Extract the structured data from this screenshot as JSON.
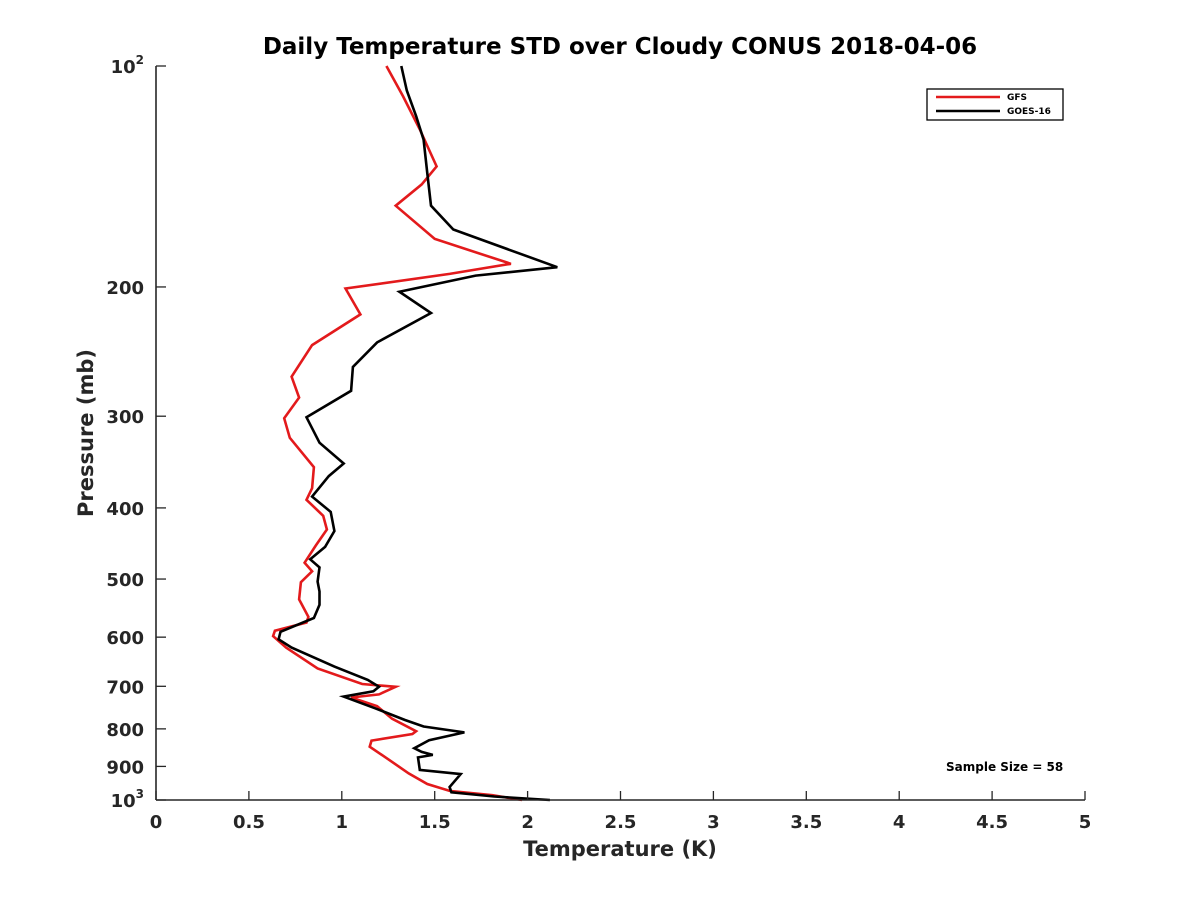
{
  "chart_data": {
    "type": "line",
    "title": "Daily Temperature STD over Cloudy CONUS 2018-04-06",
    "xlabel": "Temperature (K)",
    "ylabel": "Pressure (mb)",
    "xlim": [
      0,
      5
    ],
    "ylim": [
      100,
      1000
    ],
    "y_scale": "log",
    "y_reversed": true,
    "grid": false,
    "legend_position": "top-right",
    "x_ticks": [
      "0",
      "0.5",
      "1",
      "1.5",
      "2",
      "2.5",
      "3",
      "3.5",
      "4",
      "4.5",
      "5"
    ],
    "x_tick_values": [
      0,
      0.5,
      1,
      1.5,
      2,
      2.5,
      3,
      3.5,
      4,
      4.5,
      5
    ],
    "y_ticks": [
      {
        "value": 100,
        "base": "10",
        "exp": "2"
      },
      {
        "value": 200,
        "label": "200"
      },
      {
        "value": 300,
        "label": "300"
      },
      {
        "value": 400,
        "label": "400"
      },
      {
        "value": 500,
        "label": "500"
      },
      {
        "value": 600,
        "label": "600"
      },
      {
        "value": 700,
        "label": "700"
      },
      {
        "value": 800,
        "label": "800"
      },
      {
        "value": 900,
        "label": "900"
      },
      {
        "value": 1000,
        "base": "10",
        "exp": "3"
      }
    ],
    "annotation": "Sample Size = 58",
    "series": [
      {
        "name": "GFS",
        "color": "#e31a1c",
        "points": [
          [
            1.24,
            100
          ],
          [
            1.33,
            110
          ],
          [
            1.42,
            122
          ],
          [
            1.51,
            137
          ],
          [
            1.43,
            145
          ],
          [
            1.29,
            155
          ],
          [
            1.5,
            172
          ],
          [
            1.91,
            186
          ],
          [
            1.58,
            192
          ],
          [
            1.02,
            201
          ],
          [
            1.1,
            218
          ],
          [
            0.84,
            240
          ],
          [
            0.73,
            265
          ],
          [
            0.77,
            283
          ],
          [
            0.69,
            302
          ],
          [
            0.72,
            321
          ],
          [
            0.85,
            352
          ],
          [
            0.84,
            376
          ],
          [
            0.81,
            390
          ],
          [
            0.9,
            410
          ],
          [
            0.92,
            428
          ],
          [
            0.86,
            450
          ],
          [
            0.8,
            475
          ],
          [
            0.84,
            488
          ],
          [
            0.78,
            505
          ],
          [
            0.77,
            533
          ],
          [
            0.82,
            563
          ],
          [
            0.81,
            573
          ],
          [
            0.64,
            588
          ],
          [
            0.63,
            598
          ],
          [
            0.7,
            620
          ],
          [
            0.87,
            662
          ],
          [
            1.11,
            695
          ],
          [
            1.29,
            701
          ],
          [
            1.2,
            718
          ],
          [
            1.05,
            725
          ],
          [
            1.19,
            745
          ],
          [
            1.27,
            775
          ],
          [
            1.4,
            806
          ],
          [
            1.38,
            813
          ],
          [
            1.16,
            830
          ],
          [
            1.15,
            846
          ],
          [
            1.25,
            880
          ],
          [
            1.36,
            920
          ],
          [
            1.46,
            951
          ],
          [
            1.58,
            972
          ],
          [
            1.81,
            985
          ],
          [
            1.97,
            1000
          ]
        ]
      },
      {
        "name": "GOES-16",
        "color": "#000000",
        "points": [
          [
            1.32,
            100
          ],
          [
            1.35,
            108
          ],
          [
            1.4,
            117
          ],
          [
            1.44,
            126
          ],
          [
            1.46,
            140
          ],
          [
            1.48,
            155
          ],
          [
            1.6,
            167
          ],
          [
            2.16,
            188
          ],
          [
            1.72,
            193
          ],
          [
            1.31,
            203
          ],
          [
            1.48,
            217
          ],
          [
            1.19,
            238
          ],
          [
            1.06,
            257
          ],
          [
            1.05,
            277
          ],
          [
            0.81,
            301
          ],
          [
            0.88,
            326
          ],
          [
            1.01,
            348
          ],
          [
            0.93,
            362
          ],
          [
            0.84,
            386
          ],
          [
            0.94,
            405
          ],
          [
            0.96,
            430
          ],
          [
            0.91,
            452
          ],
          [
            0.83,
            470
          ],
          [
            0.88,
            482
          ],
          [
            0.87,
            504
          ],
          [
            0.88,
            520
          ],
          [
            0.88,
            542
          ],
          [
            0.85,
            565
          ],
          [
            0.67,
            590
          ],
          [
            0.66,
            604
          ],
          [
            0.73,
            620
          ],
          [
            0.96,
            658
          ],
          [
            1.14,
            686
          ],
          [
            1.2,
            701
          ],
          [
            1.17,
            711
          ],
          [
            1.01,
            723
          ],
          [
            1.18,
            750
          ],
          [
            1.34,
            778
          ],
          [
            1.44,
            794
          ],
          [
            1.66,
            809
          ],
          [
            1.47,
            829
          ],
          [
            1.39,
            850
          ],
          [
            1.43,
            860
          ],
          [
            1.49,
            868
          ],
          [
            1.41,
            875
          ],
          [
            1.42,
            910
          ],
          [
            1.64,
            922
          ],
          [
            1.58,
            960
          ],
          [
            1.59,
            976
          ],
          [
            1.82,
            989
          ],
          [
            2.12,
            1000
          ]
        ]
      }
    ]
  }
}
